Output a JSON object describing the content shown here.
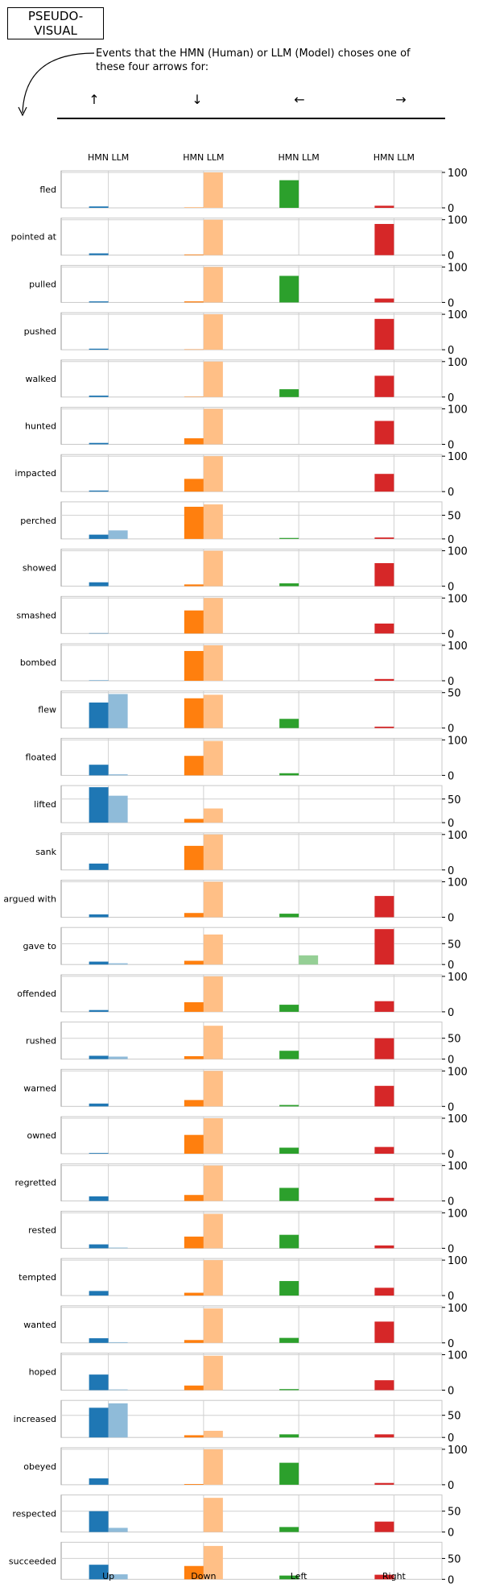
{
  "title": [
    "PSEUDO-",
    "VISUAL"
  ],
  "caption": "Events that the HMN (Human) or LLM (Model) choses one of these four arrows for:",
  "arrows": [
    "↑",
    "↓",
    "←",
    "→"
  ],
  "colors": {
    "up_hmn": "#1f77b4",
    "up_llm": "#8fbbd9",
    "down_hmn": "#ff7f0e",
    "down_llm": "#ffbf86",
    "left_hmn": "#2ca02c",
    "left_llm": "#95cf95",
    "right_hmn": "#d62728",
    "right_llm": "#ea9293"
  },
  "chart_data": {
    "type": "bar",
    "categories": [
      "Up",
      "Down",
      "Left",
      "Right"
    ],
    "series_labels": [
      "HMN",
      "LLM"
    ],
    "rows": [
      {
        "label": "fled",
        "ymax": 100,
        "ticks": [
          0,
          100
        ],
        "hmn": [
          4,
          1,
          78,
          6
        ],
        "llm": [
          0,
          100,
          0,
          0
        ]
      },
      {
        "label": "pointed at",
        "ymax": 100,
        "ticks": [
          0,
          100
        ],
        "hmn": [
          5,
          2,
          0,
          88
        ],
        "llm": [
          0,
          100,
          0,
          0
        ]
      },
      {
        "label": "pulled",
        "ymax": 100,
        "ticks": [
          0,
          100
        ],
        "hmn": [
          3,
          3,
          75,
          11
        ],
        "llm": [
          0,
          100,
          0,
          0
        ]
      },
      {
        "label": "pushed",
        "ymax": 100,
        "ticks": [
          0,
          100
        ],
        "hmn": [
          3,
          1,
          0,
          87
        ],
        "llm": [
          0,
          100,
          0,
          0
        ]
      },
      {
        "label": "walked",
        "ymax": 100,
        "ticks": [
          0,
          100
        ],
        "hmn": [
          4,
          1,
          22,
          60
        ],
        "llm": [
          0,
          100,
          0,
          0
        ]
      },
      {
        "label": "hunted",
        "ymax": 100,
        "ticks": [
          0,
          100
        ],
        "hmn": [
          4,
          17,
          0,
          66
        ],
        "llm": [
          0,
          100,
          0,
          0
        ]
      },
      {
        "label": "impacted",
        "ymax": 100,
        "ticks": [
          0,
          100
        ],
        "hmn": [
          3,
          36,
          0,
          50
        ],
        "llm": [
          0,
          100,
          0,
          0
        ]
      },
      {
        "label": "perched",
        "ymax": 75,
        "ticks": [
          0,
          50
        ],
        "hmn": [
          9,
          68,
          2,
          3
        ],
        "llm": [
          18,
          73,
          0,
          0
        ]
      },
      {
        "label": "showed",
        "ymax": 100,
        "ticks": [
          0,
          100
        ],
        "hmn": [
          11,
          5,
          8,
          65
        ],
        "llm": [
          0,
          100,
          0,
          0
        ]
      },
      {
        "label": "smashed",
        "ymax": 100,
        "ticks": [
          0,
          100
        ],
        "hmn": [
          1,
          65,
          0,
          28
        ],
        "llm": [
          0,
          100,
          0,
          0
        ]
      },
      {
        "label": "bombed",
        "ymax": 100,
        "ticks": [
          0,
          100
        ],
        "hmn": [
          1,
          84,
          0,
          5
        ],
        "llm": [
          0,
          100,
          0,
          0
        ]
      },
      {
        "label": "flew",
        "ymax": 50,
        "ticks": [
          0,
          50
        ],
        "hmn": [
          36,
          42,
          13,
          2
        ],
        "llm": [
          48,
          47,
          0,
          0
        ]
      },
      {
        "label": "floated",
        "ymax": 100,
        "ticks": [
          0,
          100
        ],
        "hmn": [
          30,
          55,
          6,
          0
        ],
        "llm": [
          3,
          97,
          0,
          0
        ]
      },
      {
        "label": "lifted",
        "ymax": 75,
        "ticks": [
          0,
          50
        ],
        "hmn": [
          75,
          8,
          0,
          0
        ],
        "llm": [
          57,
          30,
          0,
          0
        ]
      },
      {
        "label": "sank",
        "ymax": 100,
        "ticks": [
          0,
          100
        ],
        "hmn": [
          18,
          68,
          0,
          0
        ],
        "llm": [
          0,
          100,
          0,
          0
        ]
      },
      {
        "label": "argued with",
        "ymax": 100,
        "ticks": [
          0,
          100
        ],
        "hmn": [
          8,
          12,
          10,
          60
        ],
        "llm": [
          0,
          100,
          0,
          0
        ]
      },
      {
        "label": "gave to",
        "ymax": 85,
        "ticks": [
          0,
          50
        ],
        "hmn": [
          7,
          9,
          0,
          85
        ],
        "llm": [
          3,
          72,
          22,
          0
        ]
      },
      {
        "label": "offended",
        "ymax": 100,
        "ticks": [
          0,
          100
        ],
        "hmn": [
          5,
          27,
          20,
          30
        ],
        "llm": [
          0,
          100,
          0,
          0
        ]
      },
      {
        "label": "rushed",
        "ymax": 85,
        "ticks": [
          0,
          50
        ],
        "hmn": [
          8,
          7,
          20,
          50
        ],
        "llm": [
          6,
          80,
          0,
          0
        ]
      },
      {
        "label": "warned",
        "ymax": 100,
        "ticks": [
          0,
          100
        ],
        "hmn": [
          8,
          18,
          4,
          58
        ],
        "llm": [
          0,
          100,
          0,
          0
        ]
      },
      {
        "label": "owned",
        "ymax": 100,
        "ticks": [
          0,
          100
        ],
        "hmn": [
          2,
          53,
          17,
          19
        ],
        "llm": [
          0,
          100,
          0,
          0
        ]
      },
      {
        "label": "regretted",
        "ymax": 100,
        "ticks": [
          0,
          100
        ],
        "hmn": [
          13,
          17,
          37,
          9
        ],
        "llm": [
          0,
          100,
          0,
          0
        ]
      },
      {
        "label": "rested",
        "ymax": 100,
        "ticks": [
          0,
          100
        ],
        "hmn": [
          11,
          33,
          38,
          8
        ],
        "llm": [
          2,
          97,
          0,
          0
        ]
      },
      {
        "label": "tempted",
        "ymax": 100,
        "ticks": [
          0,
          100
        ],
        "hmn": [
          13,
          8,
          41,
          22
        ],
        "llm": [
          0,
          100,
          0,
          0
        ]
      },
      {
        "label": "wanted",
        "ymax": 100,
        "ticks": [
          0,
          100
        ],
        "hmn": [
          13,
          8,
          14,
          60
        ],
        "llm": [
          2,
          97,
          0,
          0
        ]
      },
      {
        "label": "hoped",
        "ymax": 100,
        "ticks": [
          0,
          100
        ],
        "hmn": [
          44,
          13,
          3,
          28
        ],
        "llm": [
          2,
          97,
          0,
          0
        ]
      },
      {
        "label": "increased",
        "ymax": 80,
        "ticks": [
          0,
          50
        ],
        "hmn": [
          67,
          5,
          7,
          7
        ],
        "llm": [
          77,
          15,
          0,
          0
        ]
      },
      {
        "label": "obeyed",
        "ymax": 100,
        "ticks": [
          0,
          100
        ],
        "hmn": [
          18,
          2,
          62,
          5
        ],
        "llm": [
          0,
          100,
          0,
          0
        ]
      },
      {
        "label": "respected",
        "ymax": 85,
        "ticks": [
          0,
          50
        ],
        "hmn": [
          50,
          0,
          12,
          25
        ],
        "llm": [
          10,
          82,
          0,
          0
        ]
      },
      {
        "label": "succeeded",
        "ymax": 85,
        "ticks": [
          0,
          50
        ],
        "hmn": [
          35,
          32,
          9,
          11
        ],
        "llm": [
          12,
          80,
          0,
          0
        ]
      }
    ]
  }
}
